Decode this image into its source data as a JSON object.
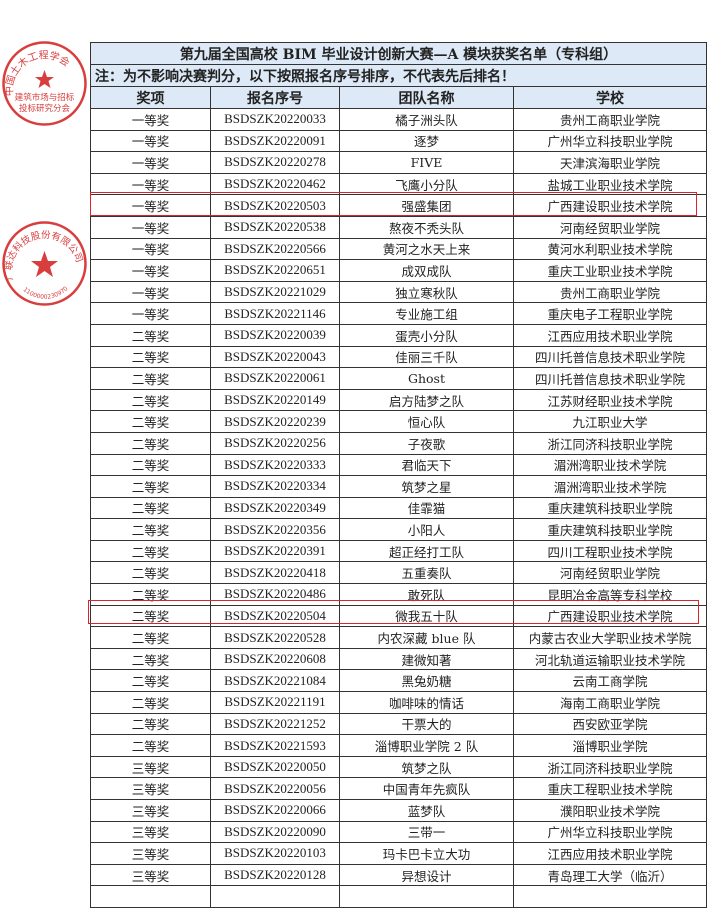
{
  "title": "第九届全国高校 BIM 毕业设计创新大赛—A 模块获奖名单（专科组）",
  "note": "注：为不影响决赛判分，以下按照报名序号排序，不代表先后排名！",
  "columns": [
    "奖项",
    "报名序号",
    "团队名称",
    "学校"
  ],
  "rows": [
    [
      "一等奖",
      "BSDSZK20220033",
      "橘子洲头队",
      "贵州工商职业学院"
    ],
    [
      "一等奖",
      "BSDSZK20220091",
      "逐梦",
      "广州华立科技职业学院"
    ],
    [
      "一等奖",
      "BSDSZK20220278",
      "FIVE",
      "天津滨海职业学院"
    ],
    [
      "一等奖",
      "BSDSZK20220462",
      "飞鹰小分队",
      "盐城工业职业技术学院"
    ],
    [
      "一等奖",
      "BSDSZK20220503",
      "强盛集团",
      "广西建设职业技术学院"
    ],
    [
      "一等奖",
      "BSDSZK20220538",
      "熬夜不秃头队",
      "河南经贸职业学院"
    ],
    [
      "一等奖",
      "BSDSZK20220566",
      "黄河之水天上来",
      "黄河水利职业技术学院"
    ],
    [
      "一等奖",
      "BSDSZK20220651",
      "成双成队",
      "重庆工业职业技术学院"
    ],
    [
      "一等奖",
      "BSDSZK20221029",
      "独立寒秋队",
      "贵州工商职业学院"
    ],
    [
      "一等奖",
      "BSDSZK20221146",
      "专业施工组",
      "重庆电子工程职业学院"
    ],
    [
      "二等奖",
      "BSDSZK20220039",
      "蛋壳小分队",
      "江西应用技术职业学院"
    ],
    [
      "二等奖",
      "BSDSZK20220043",
      "佳丽三千队",
      "四川托普信息技术职业学院"
    ],
    [
      "二等奖",
      "BSDSZK20220061",
      "Ghost",
      "四川托普信息技术职业学院"
    ],
    [
      "二等奖",
      "BSDSZK20220149",
      "启方陆梦之队",
      "江苏财经职业技术学院"
    ],
    [
      "二等奖",
      "BSDSZK20220239",
      "恒心队",
      "九江职业大学"
    ],
    [
      "二等奖",
      "BSDSZK20220256",
      "子夜歌",
      "浙江同济科技职业学院"
    ],
    [
      "二等奖",
      "BSDSZK20220333",
      "君临天下",
      "湄洲湾职业技术学院"
    ],
    [
      "二等奖",
      "BSDSZK20220334",
      "筑梦之星",
      "湄洲湾职业技术学院"
    ],
    [
      "二等奖",
      "BSDSZK20220349",
      "佳霏猫",
      "重庆建筑科技职业学院"
    ],
    [
      "二等奖",
      "BSDSZK20220356",
      "小阳人",
      "重庆建筑科技职业学院"
    ],
    [
      "二等奖",
      "BSDSZK20220391",
      "超正经打工队",
      "四川工程职业技术学院"
    ],
    [
      "二等奖",
      "BSDSZK20220418",
      "五重奏队",
      "河南经贸职业学院"
    ],
    [
      "二等奖",
      "BSDSZK20220486",
      "敢死队",
      "昆明冶金高等专科学校"
    ],
    [
      "二等奖",
      "BSDSZK20220504",
      "微我五十队",
      "广西建设职业技术学院"
    ],
    [
      "二等奖",
      "BSDSZK20220528",
      "内农深藏 blue 队",
      "内蒙古农业大学职业技术学院"
    ],
    [
      "二等奖",
      "BSDSZK20220608",
      "建微知著",
      "河北轨道运输职业技术学院"
    ],
    [
      "二等奖",
      "BSDSZK20221084",
      "黑兔奶糖",
      "云南工商学院"
    ],
    [
      "二等奖",
      "BSDSZK20221191",
      "咖啡味的情话",
      "海南工商职业学院"
    ],
    [
      "二等奖",
      "BSDSZK20221252",
      "干票大的",
      "西安欧亚学院"
    ],
    [
      "二等奖",
      "BSDSZK20221593",
      "淄博职业学院 2 队",
      "淄博职业学院"
    ],
    [
      "三等奖",
      "BSDSZK20220050",
      "筑梦之队",
      "浙江同济科技职业学院"
    ],
    [
      "三等奖",
      "BSDSZK20220056",
      "中国青年先疯队",
      "重庆工程职业技术学院"
    ],
    [
      "三等奖",
      "BSDSZK20220066",
      "蓝梦队",
      "濮阳职业技术学院"
    ],
    [
      "三等奖",
      "BSDSZK20220090",
      "三带一",
      "广州华立科技职业学院"
    ],
    [
      "三等奖",
      "BSDSZK20220103",
      "玛卡巴卡立大功",
      "江西应用技术职业学院"
    ],
    [
      "三等奖",
      "BSDSZK20220128",
      "异想设计",
      "青岛理工大学（临沂）"
    ]
  ],
  "highlighted_ids": [
    "BSDSZK20220503",
    "BSDSZK20220504"
  ],
  "stamps": [
    {
      "outer_text": "中国土木工程学会",
      "inner_text_1": "建筑市场与招标",
      "inner_text_2": "投标研究分会"
    },
    {
      "outer_text": "广联达科技股份有限公司",
      "number": "1100000230970"
    }
  ],
  "colors": {
    "header_bg": "#dde9f6",
    "highlight": "#d8262a",
    "stamp": "#d42a2a"
  }
}
